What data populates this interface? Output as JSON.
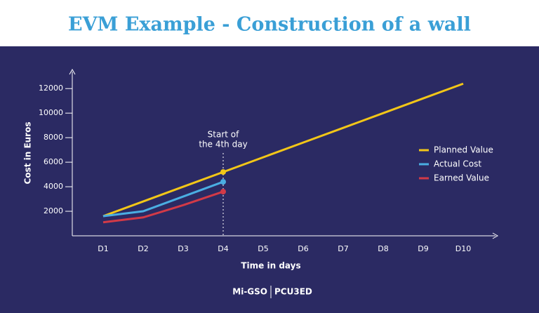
{
  "chart_data": {
    "type": "line",
    "title": "EVM Example - Construction of a wall",
    "x_label": "Time in days",
    "y_label": "Cost in Euros",
    "categories": [
      "D1",
      "D2",
      "D3",
      "D4",
      "D5",
      "D6",
      "D7",
      "D8",
      "D9",
      "D10"
    ],
    "series": [
      {
        "name": "Planned Value",
        "color": "#f2c618",
        "values": [
          1600,
          2800,
          4000,
          5200,
          6400,
          7600,
          8800,
          10000,
          11200,
          12400
        ]
      },
      {
        "name": "Actual Cost",
        "color": "#4aaee2",
        "values": [
          1600,
          2000,
          3200,
          4400,
          null,
          null,
          null,
          null,
          null,
          null
        ]
      },
      {
        "name": "Earned Value",
        "color": "#d23a47",
        "values": [
          1100,
          1500,
          2500,
          3600,
          null,
          null,
          null,
          null,
          null,
          null
        ]
      }
    ],
    "ylim": [
      0,
      13500
    ],
    "yticks": [
      2000,
      4000,
      6000,
      8000,
      10000,
      12000
    ],
    "annotation": {
      "lines": [
        "Start of",
        "the 4th day"
      ],
      "category": "D4"
    },
    "legend": "right"
  },
  "footer": [
    "Mi-GSO",
    "PCU3ED"
  ]
}
